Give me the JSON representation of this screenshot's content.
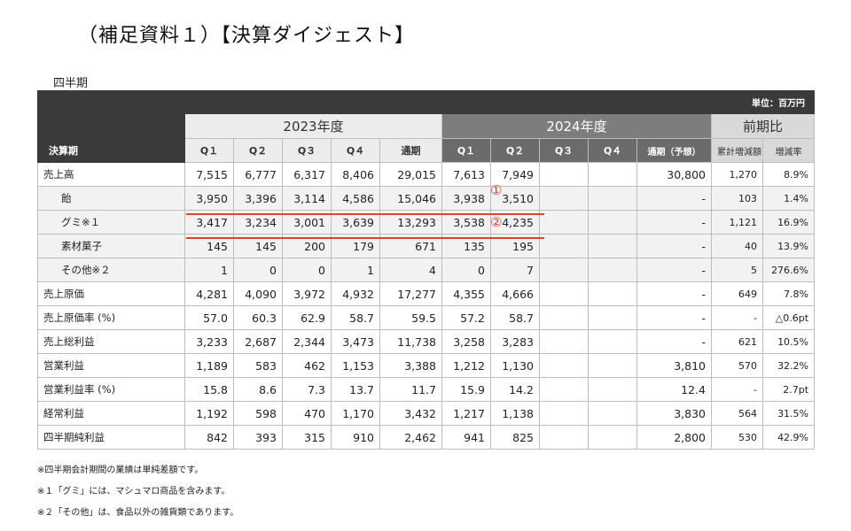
{
  "title": "（補足資料１）【決算ダイジェスト】",
  "section": "四半期",
  "unit": "単位：百万円",
  "years": {
    "y2023": "2023年度",
    "y2024": "2024年度",
    "compare": "前期比"
  },
  "header": {
    "period": "決算期",
    "cols": [
      "Q１",
      "Q２",
      "Q３",
      "Q４",
      "通期",
      "Q１",
      "Q２",
      "Q３",
      "Q４",
      "通期（予想）",
      "累計増減額",
      "増減率"
    ]
  },
  "rows": [
    {
      "label": "売上高",
      "sub": false,
      "values": [
        "7,515",
        "6,777",
        "6,317",
        "8,406",
        "29,015",
        "7,613",
        "7,949",
        "",
        "",
        "30,800",
        "1,270",
        "8.9%"
      ]
    },
    {
      "label": "飴",
      "sub": true,
      "values": [
        "3,950",
        "3,396",
        "3,114",
        "4,586",
        "15,046",
        "3,938",
        "3,510",
        "",
        "",
        "-",
        "103",
        "1.4%"
      ]
    },
    {
      "label": "グミ※１",
      "sub": true,
      "values": [
        "3,417",
        "3,234",
        "3,001",
        "3,639",
        "13,293",
        "3,538",
        "4,235",
        "",
        "",
        "-",
        "1,121",
        "16.9%"
      ]
    },
    {
      "label": "素材菓子",
      "sub": true,
      "values": [
        "145",
        "145",
        "200",
        "179",
        "671",
        "135",
        "195",
        "",
        "",
        "-",
        "40",
        "13.9%"
      ]
    },
    {
      "label": "その他※２",
      "sub": true,
      "values": [
        "1",
        "0",
        "0",
        "1",
        "4",
        "0",
        "7",
        "",
        "",
        "-",
        "5",
        "276.6%"
      ]
    },
    {
      "label": "売上原価",
      "sub": false,
      "values": [
        "4,281",
        "4,090",
        "3,972",
        "4,932",
        "17,277",
        "4,355",
        "4,666",
        "",
        "",
        "-",
        "649",
        "7.8%"
      ]
    },
    {
      "label": "売上原価率 (%)",
      "sub": false,
      "values": [
        "57.0",
        "60.3",
        "62.9",
        "58.7",
        "59.5",
        "57.2",
        "58.7",
        "",
        "",
        "-",
        "-",
        "△0.6pt"
      ]
    },
    {
      "label": "売上総利益",
      "sub": false,
      "values": [
        "3,233",
        "2,687",
        "2,344",
        "3,473",
        "11,738",
        "3,258",
        "3,283",
        "",
        "",
        "-",
        "621",
        "10.5%"
      ]
    },
    {
      "label": "営業利益",
      "sub": false,
      "values": [
        "1,189",
        "583",
        "462",
        "1,153",
        "3,388",
        "1,212",
        "1,130",
        "",
        "",
        "3,810",
        "570",
        "32.2%"
      ]
    },
    {
      "label": "営業利益率 (%)",
      "sub": false,
      "values": [
        "15.8",
        "8.6",
        "7.3",
        "13.7",
        "11.7",
        "15.9",
        "14.2",
        "",
        "",
        "12.4",
        "-",
        "2.7pt"
      ]
    },
    {
      "label": "経常利益",
      "sub": false,
      "values": [
        "1,192",
        "598",
        "470",
        "1,170",
        "3,432",
        "1,217",
        "1,138",
        "",
        "",
        "3,830",
        "564",
        "31.5%"
      ]
    },
    {
      "label": "四半期純利益",
      "sub": false,
      "values": [
        "842",
        "393",
        "315",
        "910",
        "2,462",
        "941",
        "825",
        "",
        "",
        "2,800",
        "530",
        "42.9%"
      ]
    }
  ],
  "annotations": {
    "mark1": "①",
    "mark2": "②"
  },
  "notes": [
    "※四半期会計期間の業績は単純差額です。",
    "※１「グミ」には、マシュマロ商品を含みます。",
    "※２「その他」は、食品以外の雑貨類であります。"
  ],
  "colors": {
    "header_dark": "#3a3a3a",
    "year2024": "#7d7d7d",
    "accent_red": "#d9442e"
  }
}
